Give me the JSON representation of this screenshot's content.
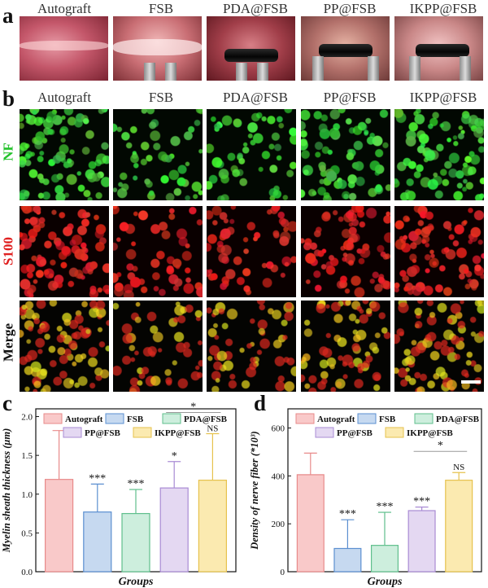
{
  "panel_a": {
    "letter": "a",
    "groups": [
      "Autograft",
      "FSB",
      "PDA@FSB",
      "PP@FSB",
      "IKPP@FSB"
    ]
  },
  "panel_b": {
    "letter": "b",
    "groups": [
      "Autograft",
      "FSB",
      "PDA@FSB",
      "PP@FSB",
      "IKPP@FSB"
    ],
    "rows": [
      {
        "label": "NF",
        "color": "#22c22a"
      },
      {
        "label": "S100",
        "color": "#e02020"
      },
      {
        "label": "Merge",
        "color": "#111111"
      }
    ]
  },
  "colors": {
    "Autograft": {
      "fill": "#f9c9c9",
      "stroke": "#e88a8a"
    },
    "FSB": {
      "fill": "#c6d9f0",
      "stroke": "#5b8fd0"
    },
    "PDA@FSB": {
      "fill": "#cdeedd",
      "stroke": "#5fbf8c"
    },
    "PP@FSB": {
      "fill": "#e4d8f2",
      "stroke": "#a98bd4"
    },
    "IKPP@FSB": {
      "fill": "#fbeab0",
      "stroke": "#e6c24d"
    }
  },
  "chart_data": [
    {
      "panel": "c",
      "type": "bar",
      "categories": [
        "Autograft",
        "FSB",
        "PDA@FSB",
        "PP@FSB",
        "IKPP@FSB"
      ],
      "values": [
        1.19,
        0.77,
        0.75,
        1.08,
        1.18
      ],
      "errors": [
        0.63,
        0.36,
        0.31,
        0.34,
        0.6
      ],
      "significance": [
        "",
        "***",
        "***",
        "*",
        "NS"
      ],
      "bracket": {
        "from": "PP@FSB",
        "to": "IKPP@FSB",
        "label": "*"
      },
      "legend": [
        "Autograft",
        "FSB",
        "PDA@FSB",
        "PP@FSB",
        "IKPP@FSB"
      ],
      "xlabel": "Groups",
      "ylabel": "Myelin sheath thickness (μm)",
      "ylim": [
        0,
        2.1
      ],
      "yticks": [
        0.0,
        0.5,
        1.0,
        1.5,
        2.0
      ],
      "ytick_labels": [
        "0.0",
        "0.5",
        "1.0",
        "1.5",
        "2.0"
      ]
    },
    {
      "panel": "d",
      "type": "bar",
      "categories": [
        "Autograft",
        "FSB",
        "PDA@FSB",
        "PP@FSB",
        "IKPP@FSB"
      ],
      "values": [
        405,
        97,
        110,
        255,
        382
      ],
      "errors": [
        90,
        120,
        138,
        15,
        32
      ],
      "significance": [
        "",
        "***",
        "***",
        "***",
        "NS"
      ],
      "bracket": {
        "from": "PP@FSB",
        "to": "IKPP@FSB",
        "label": "*"
      },
      "legend": [
        "Autograft",
        "FSB",
        "PDA@FSB",
        "PP@FSB",
        "IKPP@FSB"
      ],
      "xlabel": "Groups",
      "ylabel": "Density of nerve fiber (*10³)",
      "ylim": [
        0,
        680
      ],
      "yticks": [
        0,
        200,
        400,
        600
      ],
      "ytick_labels": [
        "0",
        "200",
        "400",
        "600"
      ]
    }
  ]
}
